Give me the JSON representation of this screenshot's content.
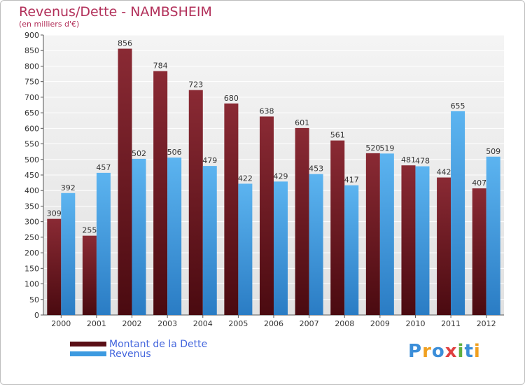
{
  "title": "Revenus/Dette - NAMBSHEIM",
  "subtitle": "(en milliers d'€)",
  "logo": {
    "letters": [
      "P",
      "r",
      "o",
      "x",
      "i",
      "t",
      "i"
    ],
    "colors": [
      "#3b8ed9",
      "#f0a020",
      "#3b8ed9",
      "#e04040",
      "#60b040",
      "#3b8ed9",
      "#f0a020"
    ]
  },
  "colors": {
    "dette": "#7a1e28",
    "revenus": "#4da6e8",
    "title": "#b2305a",
    "legend_text": "#4466dd"
  },
  "chart_data": {
    "type": "bar",
    "title": "Revenus/Dette - NAMBSHEIM",
    "subtitle": "(en milliers d'€)",
    "categories": [
      "2000",
      "2001",
      "2002",
      "2003",
      "2004",
      "2005",
      "2006",
      "2007",
      "2008",
      "2009",
      "2010",
      "2011",
      "2012"
    ],
    "series": [
      {
        "name": "Montant de la Dette",
        "values": [
          309,
          255,
          856,
          784,
          723,
          680,
          638,
          601,
          561,
          520,
          481,
          442,
          407
        ],
        "color": "#7a1e28"
      },
      {
        "name": "Revenus",
        "values": [
          392,
          457,
          502,
          506,
          479,
          422,
          429,
          453,
          417,
          519,
          478,
          655,
          509
        ],
        "color": "#4da6e8"
      }
    ],
    "ylim": [
      0,
      900
    ],
    "yticks": [
      0,
      50,
      100,
      150,
      200,
      250,
      300,
      350,
      400,
      450,
      500,
      550,
      600,
      650,
      700,
      750,
      800,
      850,
      900
    ],
    "grid": true,
    "legend": "bottom-left"
  }
}
